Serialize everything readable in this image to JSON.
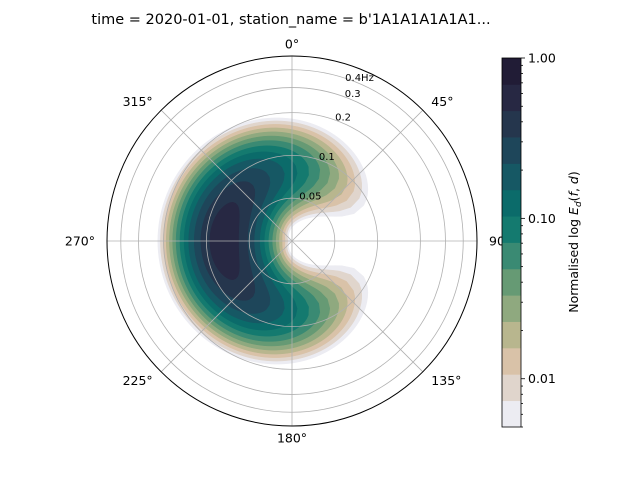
{
  "chart_data": {
    "type": "polar-contour",
    "title": "time = 2020-01-01, station_name = b'1A1A1A1A1A1...",
    "theta_direction": "clockwise",
    "theta_zero": "north",
    "direction_tick_labels": [
      "0°",
      "45°",
      "90°",
      "135°",
      "180°",
      "225°",
      "270°",
      "315°"
    ],
    "radial_ticks": [
      0.05,
      0.1,
      0.2,
      0.3,
      0.4
    ],
    "radial_tick_labels": [
      "0.05",
      "0.1",
      "0.2",
      "0.3",
      "0.4Hz"
    ],
    "radial_scale": "log",
    "rlim": [
      0.025,
      0.5
    ],
    "grid": true,
    "spectrum": {
      "peak_direction_deg": 270,
      "peak_frequency_hz": 0.075,
      "directional_spread_deg": 48,
      "frequency_log_spread": 0.33,
      "contour_levels": [
        0.005,
        0.0075,
        0.0115,
        0.0175,
        0.027,
        0.041,
        0.062,
        0.095,
        0.145,
        0.22,
        0.34,
        0.52,
        0.78,
        1.0
      ]
    },
    "colorbar": {
      "label": "Normalised log E_d(f,d)",
      "scale": "log",
      "range": [
        0.005,
        1.0
      ],
      "tick_labels": [
        "0.01",
        "0.10",
        "1.00"
      ],
      "tick_values": [
        0.01,
        0.1,
        1.0
      ],
      "colors": [
        "#ececf2",
        "#e0d5cc",
        "#d9c2a8",
        "#b8b68e",
        "#8fa97f",
        "#669a74",
        "#3a8a73",
        "#147a6f",
        "#0b6b6a",
        "#165864",
        "#1e465a",
        "#25364d",
        "#272843",
        "#211c36"
      ]
    }
  }
}
